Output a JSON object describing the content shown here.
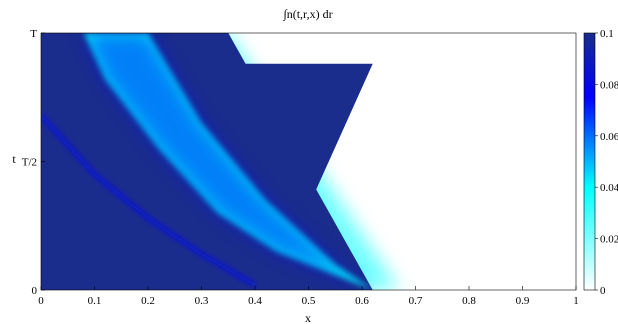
{
  "chart_data": {
    "type": "heatmap",
    "title": "∫n(t,r,x) dr",
    "xlabel": "x",
    "ylabel": "t",
    "xlim": [
      0,
      1
    ],
    "ylim": [
      0,
      1
    ],
    "x_ticks": [
      0,
      0.1,
      0.2,
      0.3,
      0.4,
      0.5,
      0.6,
      0.7,
      0.8,
      0.9,
      1
    ],
    "x_tick_labels": [
      "0",
      "0.1",
      "0.2",
      "0.3",
      "0.4",
      "0.5",
      "0.6",
      "0.7",
      "0.8",
      "0.9",
      "1"
    ],
    "y_ticks": [
      0,
      0.5,
      1
    ],
    "y_tick_labels": [
      "0",
      "T/2",
      "T"
    ],
    "colorbar": {
      "range": [
        0,
        0.1
      ],
      "ticks": [
        0,
        0.02,
        0.04,
        0.06,
        0.08,
        0.1
      ],
      "tick_labels": [
        "0",
        "0.02",
        "0.04",
        "0.06",
        "0.08",
        "0.1"
      ],
      "colors": [
        "#ffffff",
        "#00ffff",
        "#0000ff",
        "#1a2d8c"
      ]
    },
    "grid": false,
    "colorbar_position": "right",
    "regions": {
      "saturated_core": [
        [
          0,
          0
        ],
        [
          0.43,
          0
        ],
        [
          0.62,
          0.88
        ],
        [
          0,
          0.88
        ]
      ],
      "lower_boundary_curve": [
        [
          0,
          0.68
        ],
        [
          0.1,
          0.45
        ],
        [
          0.2,
          0.28
        ],
        [
          0.3,
          0.14
        ],
        [
          0.4,
          0.02
        ]
      ],
      "upper_wedge_left_edge": [
        [
          0.08,
          1
        ],
        [
          0.12,
          0.82
        ],
        [
          0.22,
          0.55
        ],
        [
          0.33,
          0.3
        ],
        [
          0.44,
          0.15
        ]
      ],
      "upper_wedge_right_edge": [
        [
          0.2,
          1
        ],
        [
          0.3,
          0.65
        ],
        [
          0.42,
          0.35
        ],
        [
          0.55,
          0.1
        ],
        [
          0.62,
          0
        ]
      ],
      "support_right_edge": [
        [
          0.35,
          1
        ],
        [
          0.67,
          0
        ]
      ]
    }
  }
}
